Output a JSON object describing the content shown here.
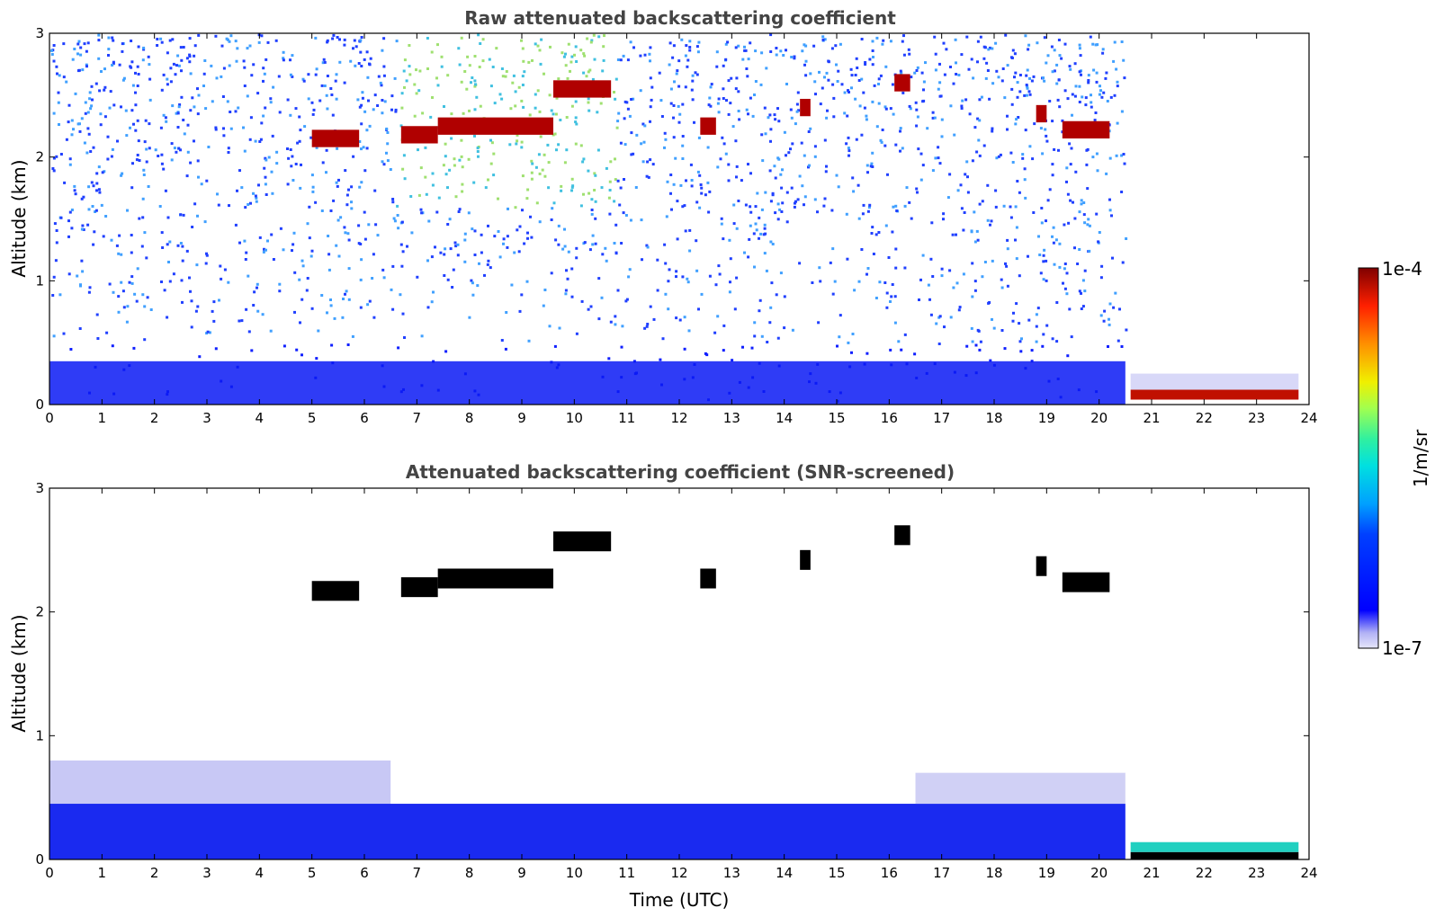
{
  "chart_data": [
    {
      "type": "heatmap",
      "title": "Raw attenuated backscattering coefficient",
      "xlabel": "",
      "ylabel": "Altitude (km)",
      "xlim": [
        0,
        24
      ],
      "ylim": [
        0,
        3
      ],
      "xticks": [
        "0",
        "1",
        "2",
        "3",
        "4",
        "5",
        "6",
        "7",
        "8",
        "9",
        "10",
        "11",
        "12",
        "13",
        "14",
        "15",
        "16",
        "17",
        "18",
        "19",
        "20",
        "21",
        "22",
        "23",
        "24"
      ],
      "yticks": [
        "0",
        "1",
        "2",
        "3"
      ],
      "features": {
        "cloud_layers_km": [
          {
            "t_start": 5.0,
            "t_end": 5.9,
            "alt": 2.15
          },
          {
            "t_start": 6.7,
            "t_end": 7.4,
            "alt": 2.18
          },
          {
            "t_start": 7.4,
            "t_end": 9.6,
            "alt": 2.25
          },
          {
            "t_start": 9.6,
            "t_end": 10.7,
            "alt": 2.55
          },
          {
            "t_start": 12.4,
            "t_end": 12.7,
            "alt": 2.25
          },
          {
            "t_start": 14.3,
            "t_end": 14.5,
            "alt": 2.4
          },
          {
            "t_start": 16.1,
            "t_end": 16.4,
            "alt": 2.6
          },
          {
            "t_start": 18.8,
            "t_end": 19.0,
            "alt": 2.35
          },
          {
            "t_start": 19.3,
            "t_end": 20.2,
            "alt": 2.22
          }
        ],
        "fog_layer": {
          "t_start": 20.6,
          "t_end": 23.8,
          "alt": 0.08
        }
      }
    },
    {
      "type": "heatmap",
      "title": "Attenuated backscattering coefficient (SNR-screened)",
      "xlabel": "Time (UTC)",
      "ylabel": "Altitude (km)",
      "xlim": [
        0,
        24
      ],
      "ylim": [
        0,
        3
      ],
      "xticks": [
        "0",
        "1",
        "2",
        "3",
        "4",
        "5",
        "6",
        "7",
        "8",
        "9",
        "10",
        "11",
        "12",
        "13",
        "14",
        "15",
        "16",
        "17",
        "18",
        "19",
        "20",
        "21",
        "22",
        "23",
        "24"
      ],
      "yticks": [
        "0",
        "1",
        "2",
        "3"
      ]
    }
  ],
  "colorbar": {
    "label": "1/m/sr",
    "max_label": "1e-4",
    "min_label": "1e-7",
    "scale": "log",
    "range": [
      1e-07,
      0.0001
    ],
    "colormap": "jet"
  }
}
